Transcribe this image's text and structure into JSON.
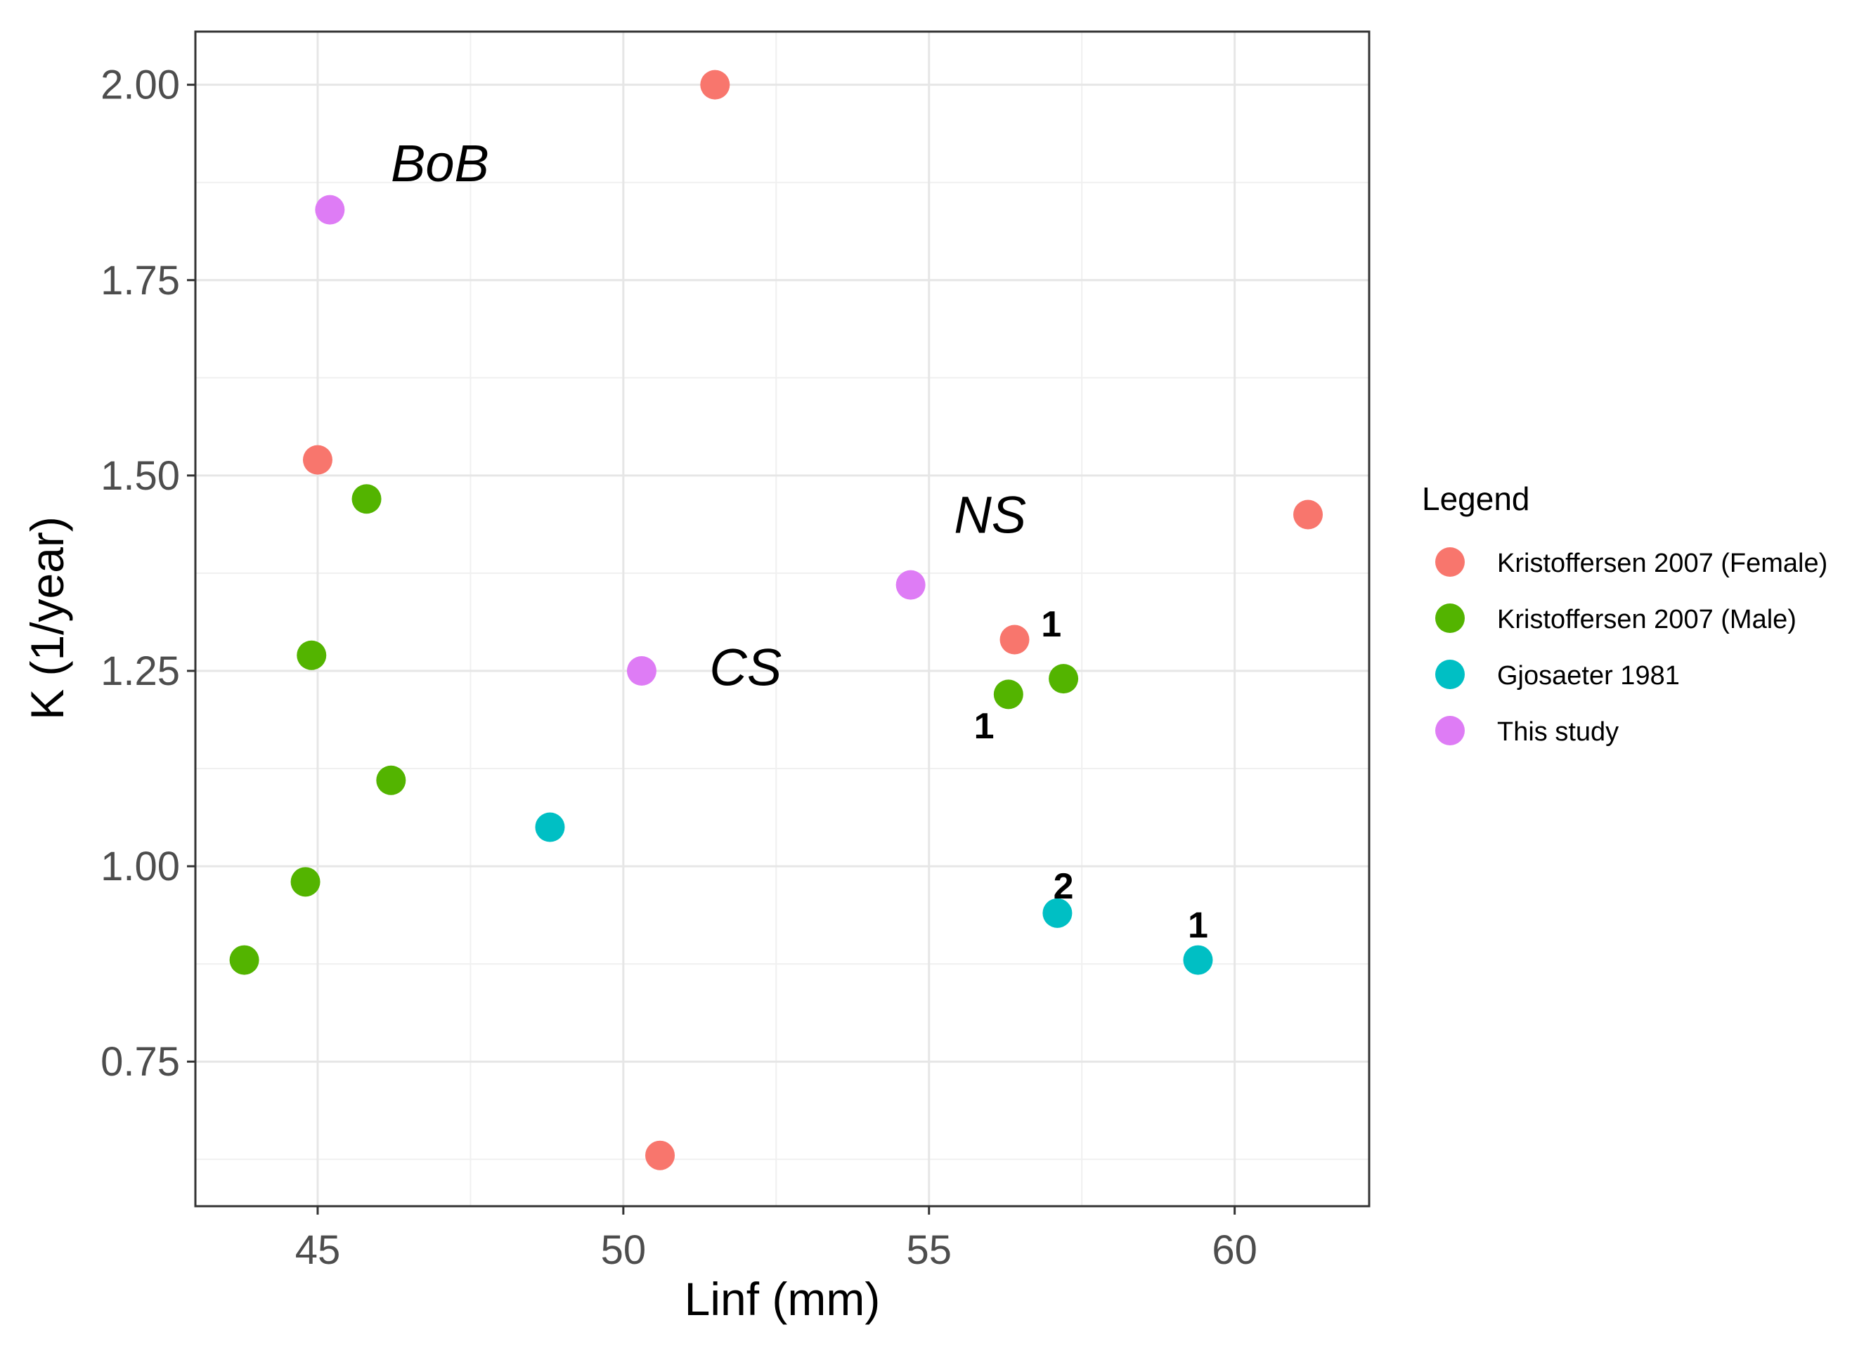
{
  "chart_data": {
    "type": "scatter",
    "title": "",
    "xlabel": "Linf (mm)",
    "ylabel": "K (1/year)",
    "xlim": [
      43,
      62.2
    ],
    "ylim": [
      0.565,
      2.068
    ],
    "x_ticks": [
      45,
      50,
      55,
      60
    ],
    "x_tick_labels": [
      "45",
      "50",
      "55",
      "60"
    ],
    "y_ticks": [
      0.75,
      1.0,
      1.25,
      1.5,
      1.75,
      2.0
    ],
    "y_tick_labels": [
      "0.75",
      "1.00",
      "1.25",
      "1.50",
      "1.75",
      "2.00"
    ],
    "grid": true,
    "legend": {
      "title": "Legend",
      "placement": "right"
    },
    "series": [
      {
        "name": "Kristoffersen 2007 (Female)",
        "color": "#F8766D",
        "points": [
          {
            "x": 51.5,
            "y": 2.0
          },
          {
            "x": 45.0,
            "y": 1.52
          },
          {
            "x": 61.2,
            "y": 1.45
          },
          {
            "x": 56.4,
            "y": 1.29
          },
          {
            "x": 50.6,
            "y": 0.63
          }
        ]
      },
      {
        "name": "Kristoffersen 2007 (Male)",
        "color": "#53B400",
        "points": [
          {
            "x": 45.8,
            "y": 1.47
          },
          {
            "x": 44.9,
            "y": 1.27
          },
          {
            "x": 56.3,
            "y": 1.22
          },
          {
            "x": 57.2,
            "y": 1.24
          },
          {
            "x": 46.2,
            "y": 1.11
          },
          {
            "x": 44.8,
            "y": 0.98
          },
          {
            "x": 43.8,
            "y": 0.88
          }
        ]
      },
      {
        "name": "Gjosaeter 1981",
        "color": "#00BFC4",
        "points": [
          {
            "x": 48.8,
            "y": 1.05
          },
          {
            "x": 57.1,
            "y": 0.94
          },
          {
            "x": 59.4,
            "y": 0.88
          }
        ]
      },
      {
        "name": "This study",
        "color": "#DE7CF5",
        "points": [
          {
            "x": 45.2,
            "y": 1.84
          },
          {
            "x": 54.7,
            "y": 1.36
          },
          {
            "x": 50.3,
            "y": 1.25
          }
        ]
      }
    ],
    "annotations": [
      {
        "text": "BoB",
        "style": "italic",
        "x": 47.0,
        "y": 1.9
      },
      {
        "text": "NS",
        "style": "italic",
        "x": 56.0,
        "y": 1.45
      },
      {
        "text": "CS",
        "style": "italic",
        "x": 52.0,
        "y": 1.255
      },
      {
        "text": "1",
        "style": "bold",
        "x": 57.0,
        "y": 1.31
      },
      {
        "text": "1",
        "style": "bold",
        "x": 55.9,
        "y": 1.18
      },
      {
        "text": "2",
        "style": "bold",
        "x": 57.2,
        "y": 0.975
      },
      {
        "text": "1",
        "style": "bold",
        "x": 59.4,
        "y": 0.925
      }
    ]
  }
}
